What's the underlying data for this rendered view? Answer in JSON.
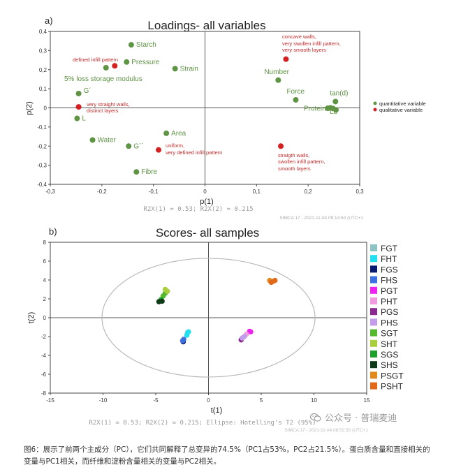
{
  "chart_data": [
    {
      "type": "scatter",
      "panel_label": "a)",
      "title": "Loadings- all variables",
      "xlabel": "p(1)",
      "ylabel": "p(2)",
      "xlim": [
        -0.3,
        0.3
      ],
      "ylim": [
        -0.4,
        0.4
      ],
      "xticks": [
        "-0,3",
        "-0,2",
        "-0,1",
        "0",
        "0,1",
        "0,2",
        "0,3"
      ],
      "yticks": [
        "0,4",
        "0,3",
        "0,2",
        "0,1",
        "0",
        "-0,1",
        "-0,2",
        "-0,3",
        "-0,4"
      ],
      "footer": "R2X(1) = 0.53; R2X(2) = 0.215",
      "stamp": "SIMCA 17 - 2021-11-04 09:14:50 (UTC+1",
      "legend": [
        {
          "name": "quantitative variable",
          "color": "#5e9444"
        },
        {
          "name": "qualitative variable",
          "color": "#d42020"
        }
      ],
      "points": [
        {
          "x": -0.143,
          "y": 0.33,
          "label": "Starch",
          "kind": "quant"
        },
        {
          "x": -0.152,
          "y": 0.24,
          "label": "Pressure",
          "kind": "quant"
        },
        {
          "x": -0.058,
          "y": 0.205,
          "label": "Strain",
          "kind": "quant"
        },
        {
          "x": -0.192,
          "y": 0.21,
          "label": "",
          "kind": "quant"
        },
        {
          "x": -0.245,
          "y": 0.075,
          "label": "G´",
          "kind": "quant"
        },
        {
          "x": -0.248,
          "y": -0.055,
          "label": "L",
          "kind": "quant"
        },
        {
          "x": -0.218,
          "y": -0.168,
          "label": "Water",
          "kind": "quant"
        },
        {
          "x": -0.148,
          "y": -0.2,
          "label": "G´´",
          "kind": "quant"
        },
        {
          "x": -0.075,
          "y": -0.133,
          "label": "Area",
          "kind": "quant"
        },
        {
          "x": -0.133,
          "y": -0.335,
          "label": "Fibre",
          "kind": "quant"
        },
        {
          "x": 0.142,
          "y": 0.145,
          "label": "Number",
          "kind": "quant"
        },
        {
          "x": 0.176,
          "y": 0.042,
          "label": "Force",
          "kind": "quant"
        },
        {
          "x": 0.253,
          "y": 0.033,
          "label": "tan(d)",
          "kind": "quant"
        },
        {
          "x": 0.243,
          "y": 0.0,
          "label": "Protein",
          "kind": "quant"
        },
        {
          "x": 0.248,
          "y": -0.003,
          "label": "",
          "kind": "quant"
        },
        {
          "x": 0.254,
          "y": -0.01,
          "label": "Lb",
          "kind": "quant"
        },
        {
          "x": 0.238,
          "y": -0.002,
          "label": "",
          "kind": "quant"
        },
        {
          "x": -0.175,
          "y": 0.22,
          "label": "defined infill pattern",
          "kind": "qual"
        },
        {
          "x": -0.245,
          "y": 0.005,
          "label": "very straight walls, distinct layers",
          "kind": "qual"
        },
        {
          "x": -0.09,
          "y": -0.22,
          "label": "uniform, very defined infill pattern",
          "kind": "qual"
        },
        {
          "x": 0.157,
          "y": 0.255,
          "label": "concave walls, very swollen infill pattern, very smooth layers",
          "kind": "qual"
        },
        {
          "x": 0.147,
          "y": -0.2,
          "label": "straigth walls, swollen infill pattern, smooth layers",
          "kind": "qual"
        }
      ],
      "text_annotations": {
        "storage_modulus": "5% loss storage modulus",
        "defined_infill": "defined infill pattern",
        "straight_1": "very straight walls,",
        "straight_2": "distinct layers",
        "uniform_1": "uniform,",
        "uniform_2": "very defined infill pattern",
        "concave_1": "concave walls,",
        "concave_2": "very swollen infill pattern,",
        "concave_3": "very smooth layers",
        "straigth_1": "straigth walls,",
        "straigth_2": "swollen infill pattern,",
        "straigth_3": "smooth layers"
      }
    },
    {
      "type": "scatter",
      "panel_label": "b)",
      "title": "Scores- all samples",
      "xlabel": "t(1)",
      "ylabel": "t(2)",
      "xlim": [
        -15,
        15
      ],
      "ylim": [
        -8,
        8
      ],
      "xticks": [
        "-15",
        "-10",
        "-5",
        "0",
        "5",
        "10",
        "15"
      ],
      "yticks": [
        "8",
        "6",
        "4",
        "2",
        "0",
        "-2",
        "-4",
        "-6",
        "-8"
      ],
      "ellipse": {
        "rx": 10.1,
        "ry": 6.3,
        "label": "Hotelling's T2 (95%)"
      },
      "footer": "R2X(1) = 0.53; R2X(2) = 0.215; Ellipse: Hotelling's T2 (95%)",
      "stamp": "SIMCA 17 - 2021-11-04 08:52:50 (UTC+1",
      "legend": [
        {
          "name": "FGT",
          "color": "#8fc4c4"
        },
        {
          "name": "FHT",
          "color": "#21e1f0"
        },
        {
          "name": "FGS",
          "color": "#0a1a6e"
        },
        {
          "name": "FHS",
          "color": "#3c6fe0"
        },
        {
          "name": "PGT",
          "color": "#ee22ee"
        },
        {
          "name": "PHT",
          "color": "#f29ae0"
        },
        {
          "name": "PGS",
          "color": "#8a2a90"
        },
        {
          "name": "PHS",
          "color": "#c39cec"
        },
        {
          "name": "SGT",
          "color": "#55b82e"
        },
        {
          "name": "SHT",
          "color": "#a9cf3c"
        },
        {
          "name": "SGS",
          "color": "#1fa02a"
        },
        {
          "name": "SHS",
          "color": "#0f3a18"
        },
        {
          "name": "PSGT",
          "color": "#e08a1e"
        },
        {
          "name": "PSHT",
          "color": "#e06a1a"
        }
      ],
      "points": [
        {
          "group": "FGT",
          "x": -2.0,
          "y": -1.6
        },
        {
          "group": "FHT",
          "x": -1.9,
          "y": -1.5
        },
        {
          "group": "FHT",
          "x": -2.05,
          "y": -1.85
        },
        {
          "group": "FGS",
          "x": -2.4,
          "y": -2.55
        },
        {
          "group": "FHS",
          "x": -2.35,
          "y": -2.3
        },
        {
          "group": "FHS",
          "x": -2.45,
          "y": -2.45
        },
        {
          "group": "PGT",
          "x": 3.9,
          "y": -1.45
        },
        {
          "group": "PGT",
          "x": 4.0,
          "y": -1.5
        },
        {
          "group": "PHT",
          "x": 3.6,
          "y": -1.75
        },
        {
          "group": "PGS",
          "x": 3.1,
          "y": -2.35
        },
        {
          "group": "PHS",
          "x": 3.2,
          "y": -2.15
        },
        {
          "group": "PHS",
          "x": 3.4,
          "y": -2.0
        },
        {
          "group": "SGT",
          "x": -4.3,
          "y": 2.3
        },
        {
          "group": "SGT",
          "x": -4.1,
          "y": 2.6
        },
        {
          "group": "SHT",
          "x": -4.1,
          "y": 3.0
        },
        {
          "group": "SHT",
          "x": -3.9,
          "y": 2.8
        },
        {
          "group": "SGS",
          "x": -4.5,
          "y": 1.9
        },
        {
          "group": "SHS",
          "x": -4.7,
          "y": 1.7
        },
        {
          "group": "SHS",
          "x": -4.4,
          "y": 1.75
        },
        {
          "group": "PSGT",
          "x": 5.8,
          "y": 3.95
        },
        {
          "group": "PSGT",
          "x": 6.1,
          "y": 3.85
        },
        {
          "group": "PSHT",
          "x": 6.3,
          "y": 3.95
        },
        {
          "group": "PSHT",
          "x": 5.95,
          "y": 3.75
        }
      ]
    }
  ],
  "watermark": "公众号 · 普瑞麦迪",
  "caption": "图6：展示了前两个主成分（PC），它们共同解释了总变异的74.5%（PC1占53%，PC2占21.5%）。蛋白质含量和直接相关的变量与PC1相关，而纤维和淀粉含量相关的变量与PC2相关。"
}
